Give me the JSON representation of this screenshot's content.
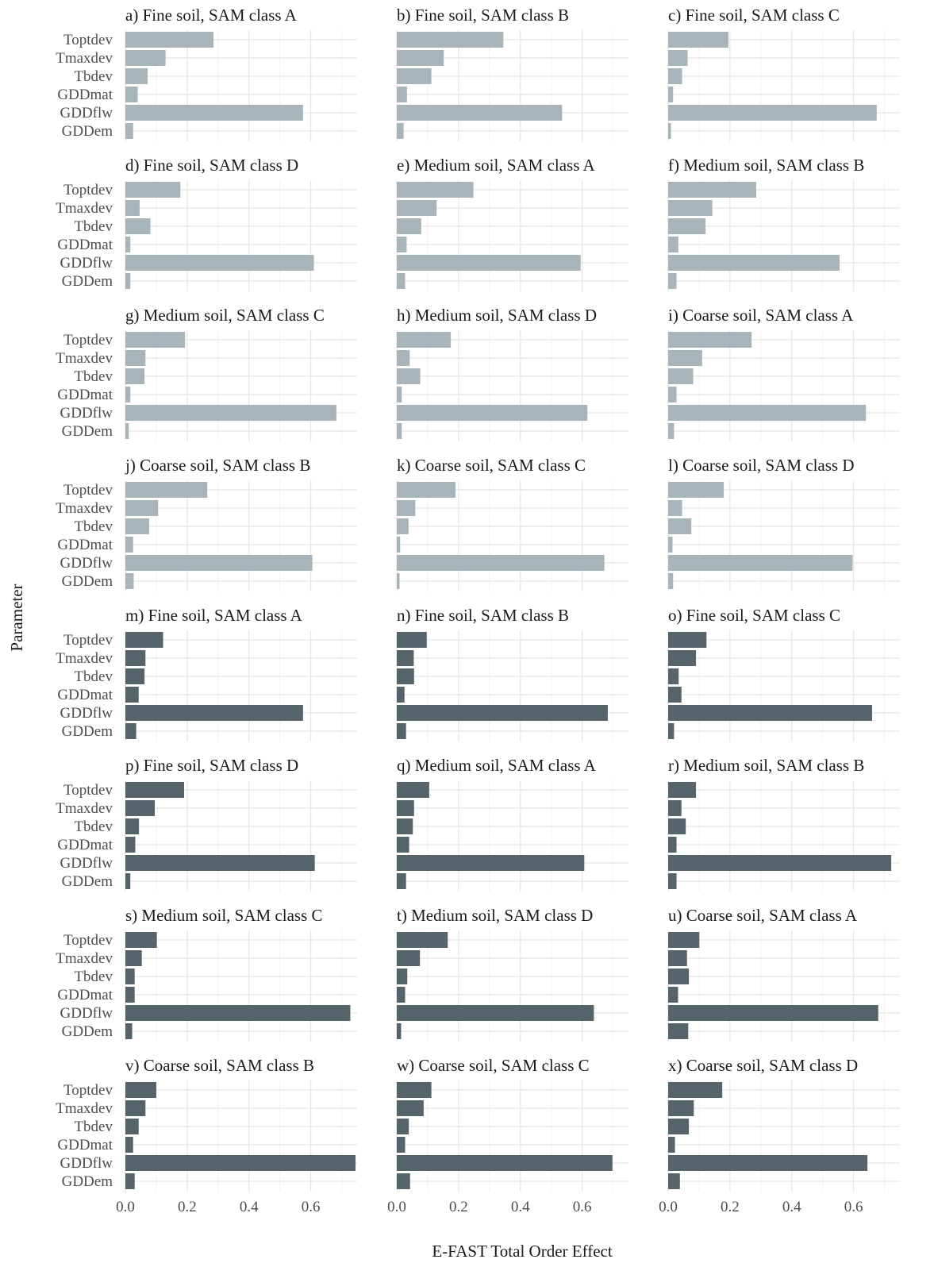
{
  "chart_data": {
    "type": "bar",
    "orientation": "horizontal",
    "facet_grid": "8 rows x 3 columns",
    "xlabel": "E-FAST Total Order Effect",
    "ylabel": "Parameter",
    "xlim": [
      0,
      0.75
    ],
    "xticks": [
      "0.0",
      "0.2",
      "0.4",
      "0.6"
    ],
    "grid": true,
    "categories": [
      "Toptdev",
      "Tmaxdev",
      "Tbdev",
      "GDDmat",
      "GDDflw",
      "GDDem"
    ],
    "colors": {
      "upper_group": "#a7b4b9",
      "lower_group": "#55636a",
      "grid": "#e5e5e5"
    },
    "panels": [
      {
        "title": "a) Fine soil, SAM class A",
        "group": "upper",
        "values": [
          0.285,
          0.13,
          0.072,
          0.04,
          0.575,
          0.025
        ]
      },
      {
        "title": "b) Fine soil, SAM class B",
        "group": "upper",
        "values": [
          0.345,
          0.152,
          0.112,
          0.033,
          0.535,
          0.022
        ]
      },
      {
        "title": "c) Fine soil, SAM class C",
        "group": "upper",
        "values": [
          0.195,
          0.063,
          0.045,
          0.016,
          0.675,
          0.009
        ]
      },
      {
        "title": "d) Fine soil, SAM class D",
        "group": "upper",
        "values": [
          0.178,
          0.046,
          0.081,
          0.016,
          0.61,
          0.016
        ]
      },
      {
        "title": "e) Medium soil, SAM class A",
        "group": "upper",
        "values": [
          0.248,
          0.129,
          0.079,
          0.032,
          0.595,
          0.027
        ]
      },
      {
        "title": "f) Medium soil, SAM class B",
        "group": "upper",
        "values": [
          0.285,
          0.143,
          0.121,
          0.033,
          0.555,
          0.027
        ]
      },
      {
        "title": "g) Medium soil, SAM class C",
        "group": "upper",
        "values": [
          0.193,
          0.065,
          0.062,
          0.016,
          0.683,
          0.011
        ]
      },
      {
        "title": "h) Medium soil, SAM class D",
        "group": "upper",
        "values": [
          0.175,
          0.042,
          0.076,
          0.016,
          0.617,
          0.016
        ]
      },
      {
        "title": "i) Coarse soil, SAM class A",
        "group": "upper",
        "values": [
          0.27,
          0.11,
          0.081,
          0.027,
          0.64,
          0.019
        ]
      },
      {
        "title": "j) Coarse soil, SAM class B",
        "group": "upper",
        "values": [
          0.265,
          0.106,
          0.077,
          0.025,
          0.605,
          0.027
        ]
      },
      {
        "title": "k) Coarse soil, SAM class C",
        "group": "upper",
        "values": [
          0.19,
          0.06,
          0.038,
          0.011,
          0.672,
          0.009
        ]
      },
      {
        "title": "l) Coarse soil, SAM class D",
        "group": "upper",
        "values": [
          0.18,
          0.045,
          0.075,
          0.014,
          0.597,
          0.016
        ]
      },
      {
        "title": "m) Fine soil, SAM class A",
        "group": "lower",
        "values": [
          0.122,
          0.065,
          0.062,
          0.043,
          0.575,
          0.035
        ]
      },
      {
        "title": "n) Fine soil, SAM class B",
        "group": "lower",
        "values": [
          0.097,
          0.055,
          0.056,
          0.025,
          0.683,
          0.03
        ]
      },
      {
        "title": "o) Fine soil, SAM class C",
        "group": "lower",
        "values": [
          0.124,
          0.09,
          0.034,
          0.043,
          0.66,
          0.019
        ]
      },
      {
        "title": "p) Fine soil, SAM class D",
        "group": "lower",
        "values": [
          0.19,
          0.095,
          0.044,
          0.032,
          0.613,
          0.016
        ]
      },
      {
        "title": "q) Medium soil, SAM class A",
        "group": "lower",
        "values": [
          0.105,
          0.056,
          0.052,
          0.04,
          0.607,
          0.03
        ]
      },
      {
        "title": "r) Medium soil, SAM class B",
        "group": "lower",
        "values": [
          0.09,
          0.043,
          0.057,
          0.027,
          0.722,
          0.027
        ]
      },
      {
        "title": "s) Medium soil, SAM class C",
        "group": "lower",
        "values": [
          0.102,
          0.053,
          0.03,
          0.03,
          0.728,
          0.022
        ]
      },
      {
        "title": "t) Medium soil, SAM class D",
        "group": "lower",
        "values": [
          0.165,
          0.075,
          0.034,
          0.027,
          0.638,
          0.014
        ]
      },
      {
        "title": "u) Coarse soil, SAM class A",
        "group": "lower",
        "values": [
          0.101,
          0.061,
          0.067,
          0.032,
          0.68,
          0.065
        ]
      },
      {
        "title": "v) Coarse soil, SAM class B",
        "group": "lower",
        "values": [
          0.1,
          0.065,
          0.043,
          0.025,
          0.745,
          0.03
        ]
      },
      {
        "title": "w) Coarse soil, SAM class C",
        "group": "lower",
        "values": [
          0.112,
          0.087,
          0.039,
          0.027,
          0.698,
          0.043
        ]
      },
      {
        "title": "x) Coarse soil, SAM class D",
        "group": "lower",
        "values": [
          0.175,
          0.083,
          0.067,
          0.022,
          0.645,
          0.038
        ]
      }
    ]
  }
}
